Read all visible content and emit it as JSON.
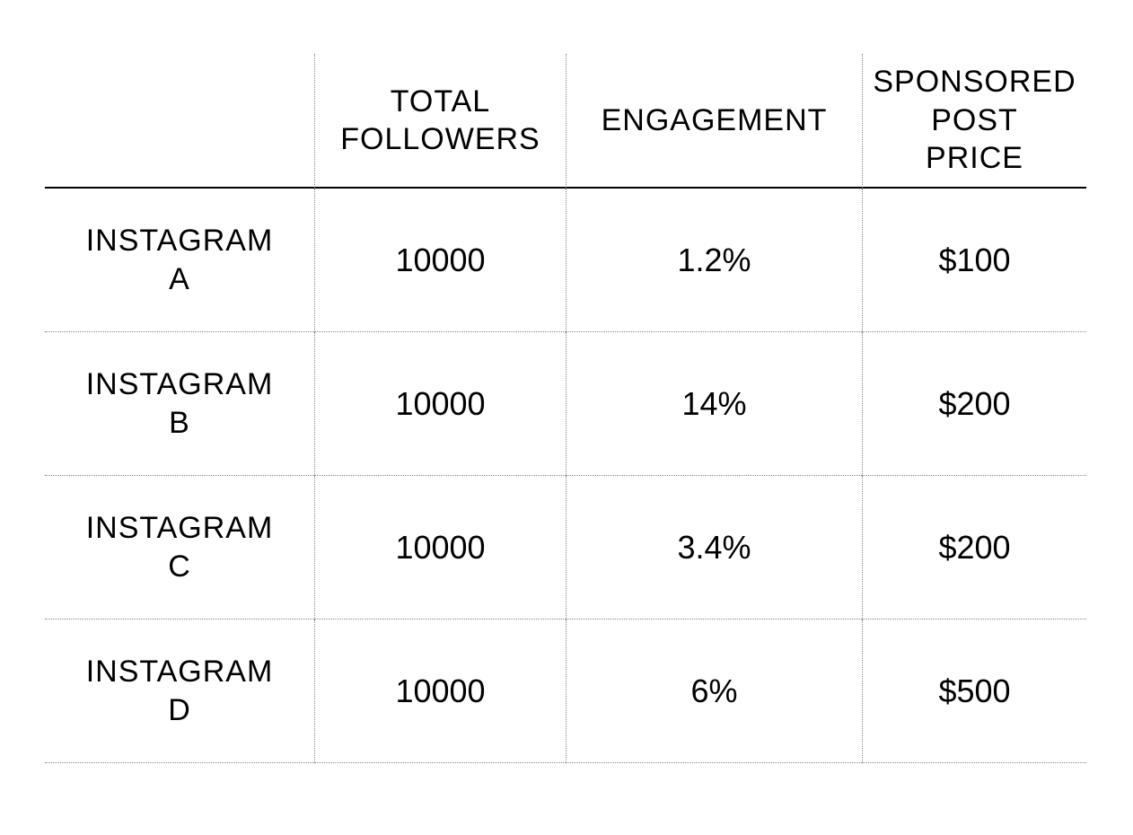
{
  "table": {
    "columns": [
      {
        "line1": "TOTAL",
        "line2": "FOLLOWERS"
      },
      {
        "line1": "ENGAGEMENT",
        "line2": ""
      },
      {
        "line1": "SPONSORED",
        "line2": "POST",
        "line3": "PRICE"
      }
    ],
    "rows": [
      {
        "label_line1": "INSTAGRAM",
        "label_line2": "A",
        "followers": "10000",
        "engagement": "1.2%",
        "price": "$100"
      },
      {
        "label_line1": "INSTAGRAM",
        "label_line2": "B",
        "followers": "10000",
        "engagement": "14%",
        "price": "$200"
      },
      {
        "label_line1": "INSTAGRAM",
        "label_line2": "C",
        "followers": "10000",
        "engagement": "3.4%",
        "price": "$200"
      },
      {
        "label_line1": "INSTAGRAM",
        "label_line2": "D",
        "followers": "10000",
        "engagement": "6%",
        "price": "$500"
      }
    ],
    "style": {
      "type": "table",
      "background_color": "#ffffff",
      "text_color": "#000000",
      "header_border_color": "#000000",
      "dotted_border_color": "#888888",
      "header_fontsize": 34,
      "cell_fontsize": 36,
      "font_family": "Futura"
    }
  }
}
